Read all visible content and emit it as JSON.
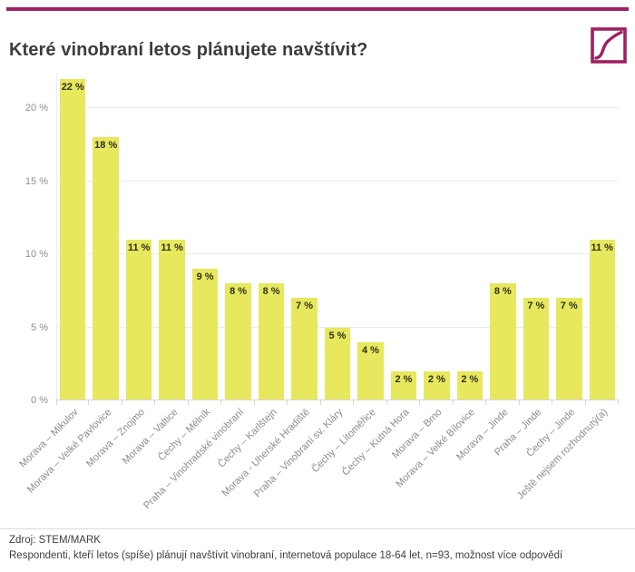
{
  "header": {
    "title": "Které vinobraní letos plánujete navštívit?",
    "accent_color": "#9e2063"
  },
  "chart_data": {
    "type": "bar",
    "title": "Které vinobraní letos plánujete navštívit?",
    "xlabel": "",
    "ylabel": "",
    "ylim": [
      0,
      22
    ],
    "grid": true,
    "bar_color": "#e7e85e",
    "categories": [
      "Morava – Mikulov",
      "Morava – Velké Pavlovice",
      "Morava – Znojmo",
      "Morava – Valtice",
      "Čechy – Mělník",
      "Praha – Vinohradské vinobraní",
      "Čechy – Karlštejn",
      "Morava - Uherské Hradiště",
      "Praha – Vinobraní sv. Kláry",
      "Čechy – Litoměřice",
      "Čechy – Kutná Hora",
      "Morava – Brno",
      "Morava – Velké Bílovice",
      "Morava – Jinde",
      "Praha – Jinde",
      "Čechy – Jinde",
      "Ještě nejsem rozhodnutý(a)"
    ],
    "values": [
      22,
      18,
      11,
      11,
      9,
      8,
      8,
      7,
      5,
      4,
      2,
      2,
      2,
      8,
      7,
      7,
      11
    ],
    "value_labels": [
      "22 %",
      "18 %",
      "11 %",
      "11 %",
      "9 %",
      "8 %",
      "8 %",
      "7 %",
      "5 %",
      "4 %",
      "2 %",
      "2 %",
      "2 %",
      "8 %",
      "7 %",
      "7 %",
      "11 %"
    ],
    "y_ticks": [
      {
        "value": 20,
        "label": "20 %"
      },
      {
        "value": 15,
        "label": "15 %"
      },
      {
        "value": 10,
        "label": "10 %"
      },
      {
        "value": 5,
        "label": "5 %"
      },
      {
        "value": 0,
        "label": "0 %"
      }
    ]
  },
  "footer": {
    "source": "Zdroj: STEM/MARK",
    "note": "Respondenti, kteří letos (spíše) plánují navštívit vinobraní, internetová populace 18-64 let, n=93, možnost více odpovědí"
  }
}
